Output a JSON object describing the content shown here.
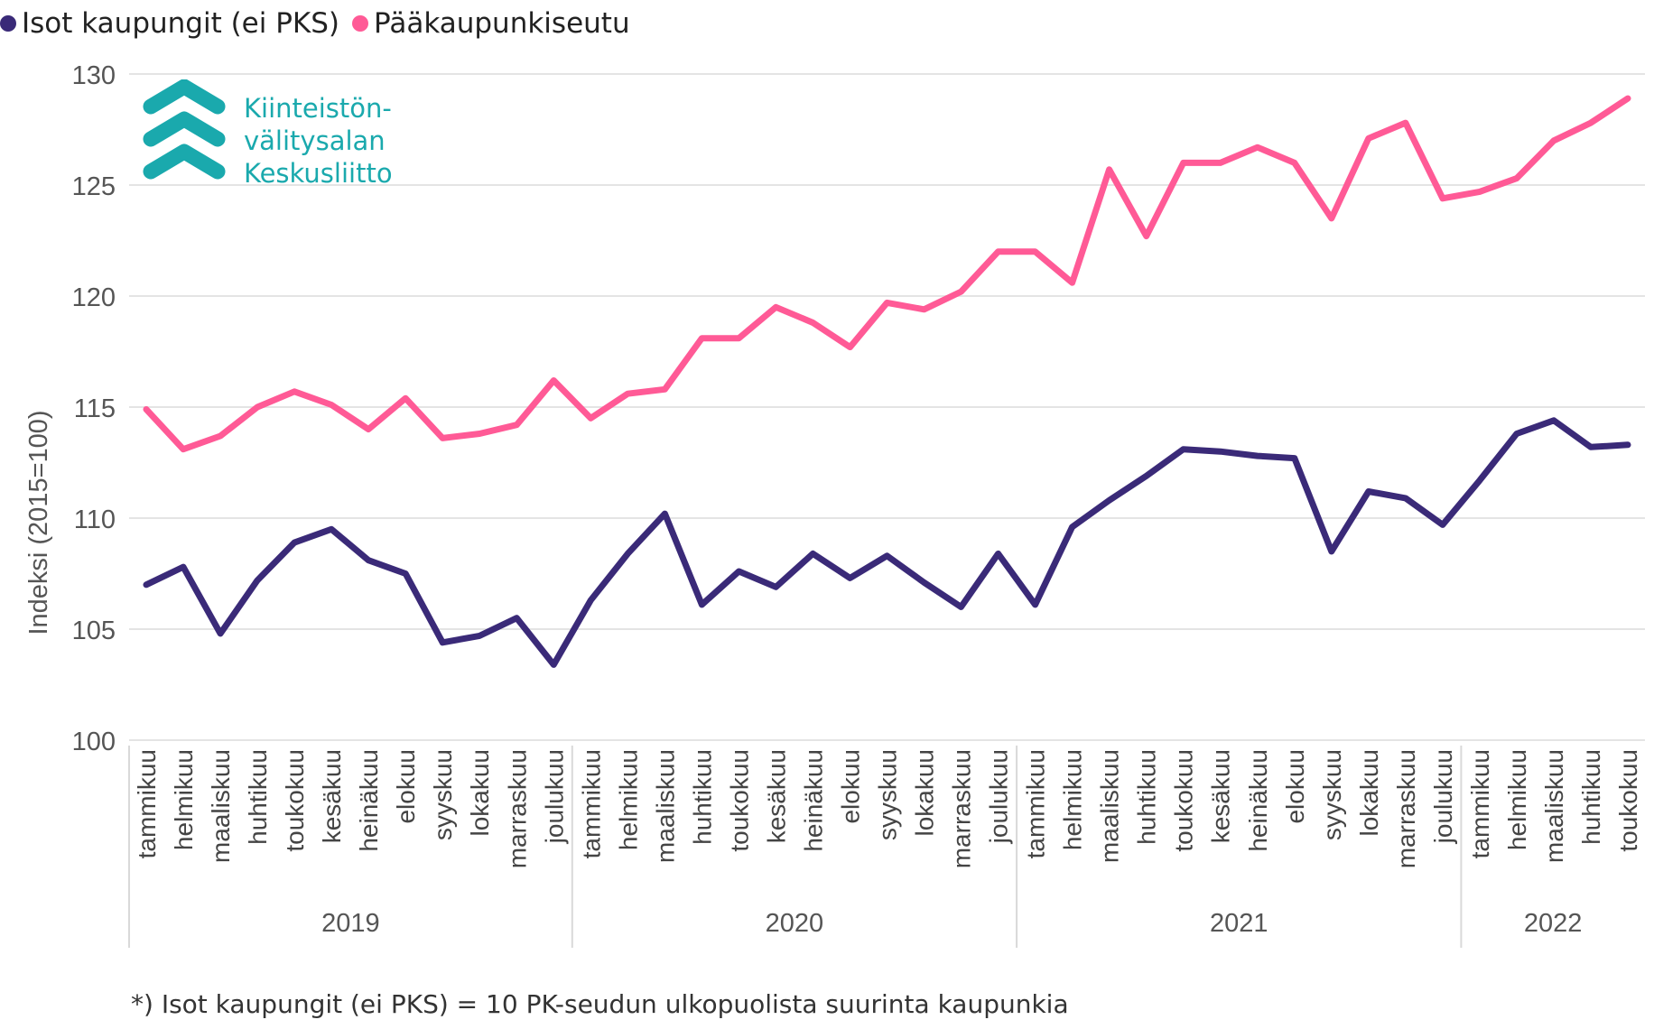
{
  "legend": {
    "items": [
      {
        "label": "Isot kaupungit (ei PKS)",
        "color": "#3a2a78"
      },
      {
        "label": "Pääkaupunkiseutu",
        "color": "#ff5a96"
      }
    ]
  },
  "logo": {
    "line1": "Kiinteistön-",
    "line2": "välitysalan",
    "line3": "Keskusliitto",
    "color": "#1aa9ad"
  },
  "footnote": "*) Isot kaupungit (ei PKS) = 10 PK-seudun ulkopuolista suurinta kaupunkia",
  "chart_data": {
    "type": "line",
    "title": "",
    "xlabel": "",
    "ylabel": "Indeksi (2015=100)",
    "ylim": [
      100,
      130
    ],
    "yticks": [
      100,
      105,
      110,
      115,
      120,
      125,
      130
    ],
    "grid": true,
    "legend_position": "top-left",
    "categories": [
      "tammikuu",
      "helmikuu",
      "maaliskuu",
      "huhtikuu",
      "toukokuu",
      "kesäkuu",
      "heinäkuu",
      "elokuu",
      "syyskuu",
      "lokakuu",
      "marraskuu",
      "joulukuu",
      "tammikuu",
      "helmikuu",
      "maaliskuu",
      "huhtikuu",
      "toukokuu",
      "kesäkuu",
      "heinäkuu",
      "elokuu",
      "syyskuu",
      "lokakuu",
      "marraskuu",
      "joulukuu",
      "tammikuu",
      "helmikuu",
      "maaliskuu",
      "huhtikuu",
      "toukokuu",
      "kesäkuu",
      "heinäkuu",
      "elokuu",
      "syyskuu",
      "lokakuu",
      "marraskuu",
      "joulukuu",
      "tammikuu",
      "helmikuu",
      "maaliskuu",
      "huhtikuu",
      "toukokuu"
    ],
    "years": [
      {
        "label": "2019",
        "count": 12
      },
      {
        "label": "2020",
        "count": 12
      },
      {
        "label": "2021",
        "count": 12
      },
      {
        "label": "2022",
        "count": 5
      }
    ],
    "series": [
      {
        "name": "Isot kaupungit (ei PKS)",
        "color": "#3a2a78",
        "values": [
          107.0,
          107.8,
          104.8,
          107.2,
          108.9,
          109.5,
          108.1,
          107.5,
          104.4,
          104.7,
          105.5,
          103.4,
          106.3,
          108.4,
          110.2,
          106.1,
          107.6,
          106.9,
          108.4,
          107.3,
          108.3,
          107.1,
          106.0,
          108.4,
          106.1,
          109.6,
          110.8,
          111.9,
          113.1,
          113.0,
          112.8,
          112.7,
          108.5,
          111.2,
          110.9,
          109.7,
          111.7,
          113.8,
          114.4,
          113.2,
          113.3
        ]
      },
      {
        "name": "Pääkaupunkiseutu",
        "color": "#ff5a96",
        "values": [
          114.9,
          113.1,
          113.7,
          115.0,
          115.7,
          115.1,
          114.0,
          115.4,
          113.6,
          113.8,
          114.2,
          116.2,
          114.5,
          115.6,
          115.8,
          118.1,
          118.1,
          119.5,
          118.8,
          117.7,
          119.7,
          119.4,
          120.2,
          122.0,
          122.0,
          120.6,
          125.7,
          122.7,
          126.0,
          126.0,
          126.7,
          126.0,
          123.5,
          127.1,
          127.8,
          124.4,
          124.7,
          125.3,
          127.0,
          127.8,
          128.9
        ]
      }
    ]
  }
}
